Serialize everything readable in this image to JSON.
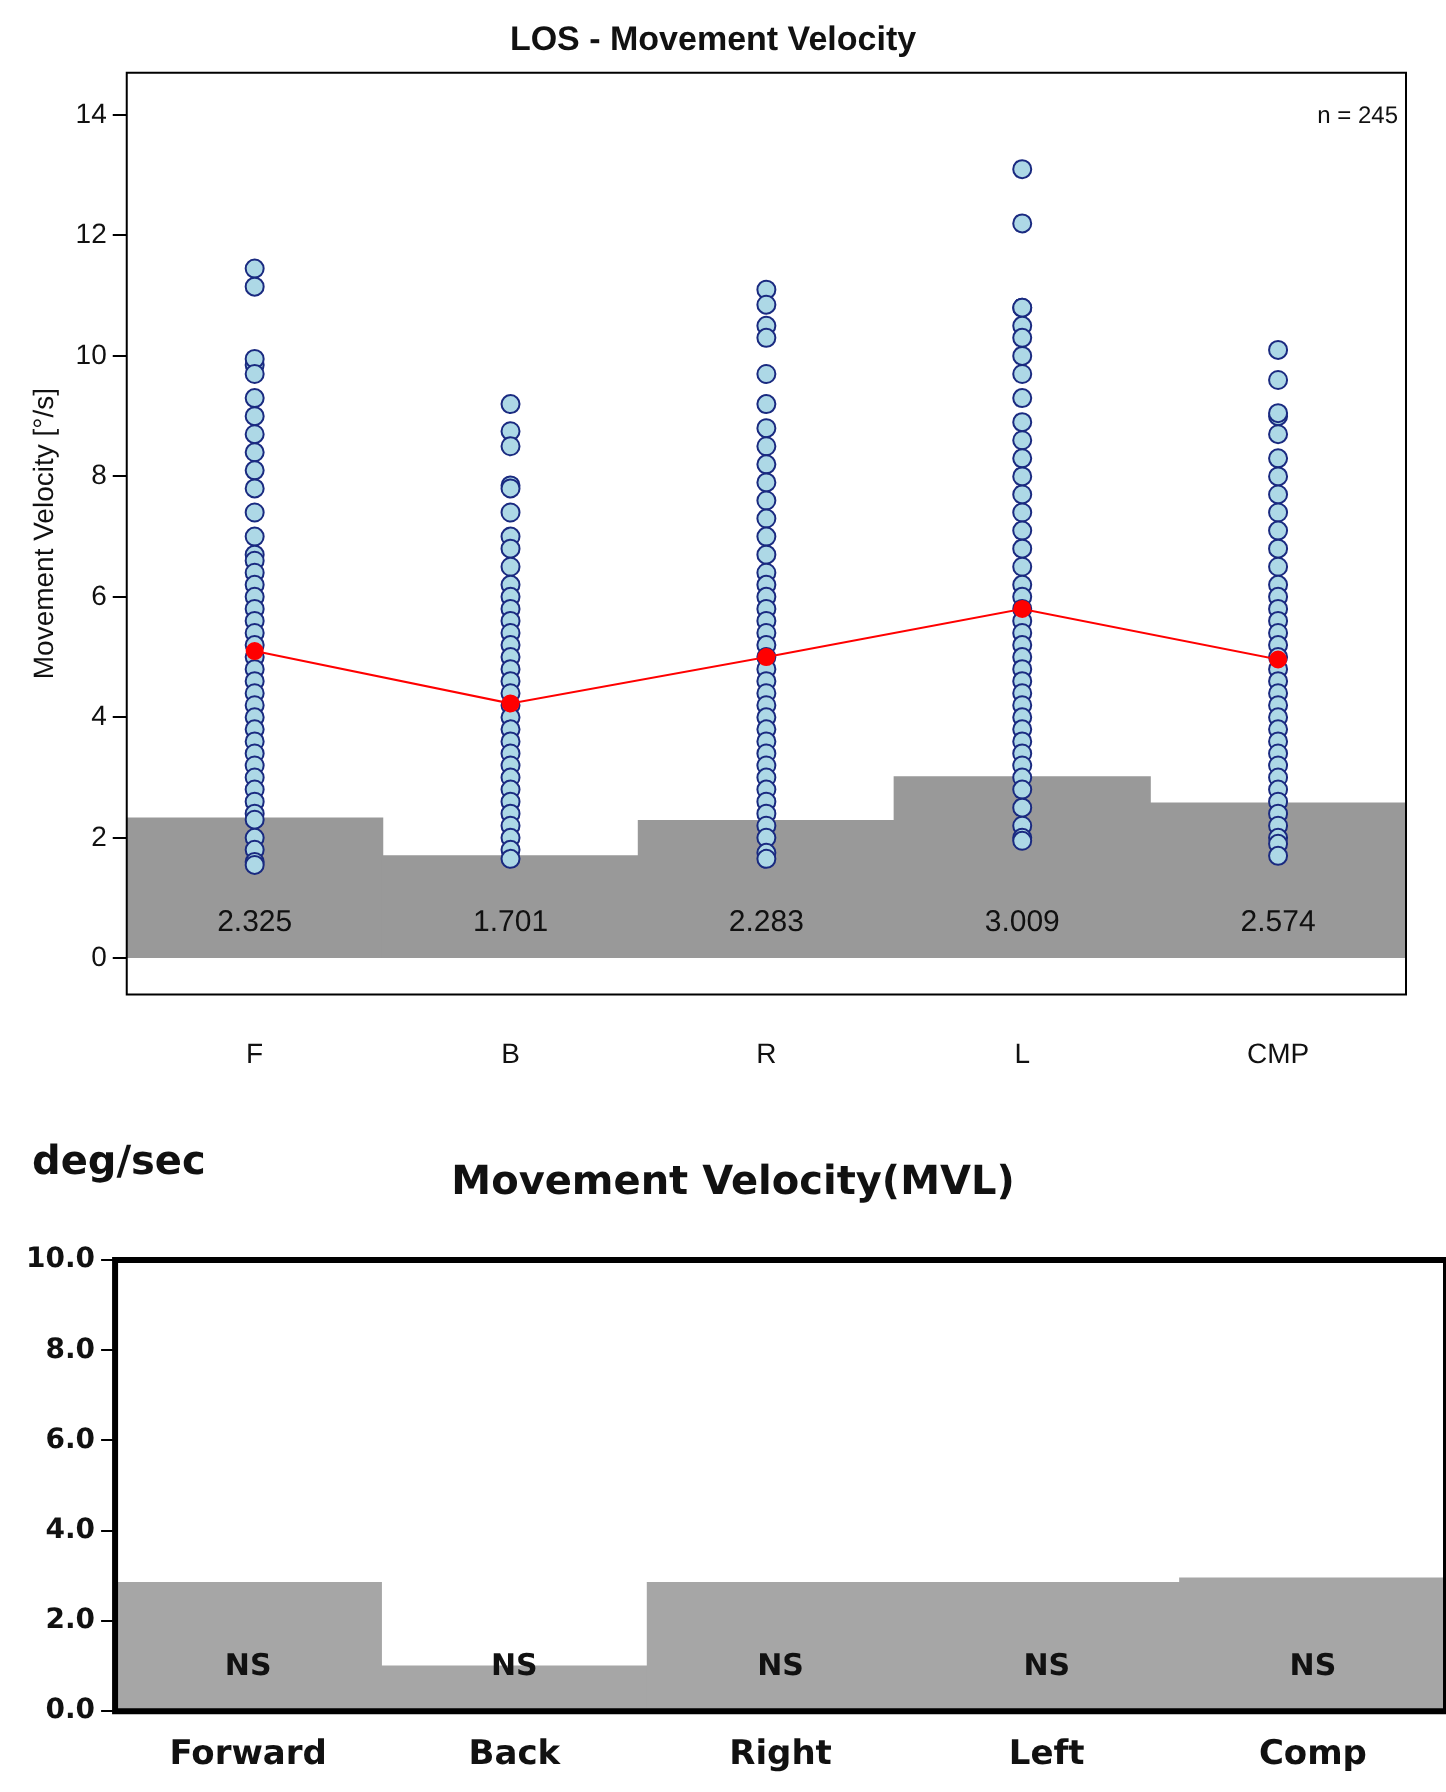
{
  "chart_data": [
    {
      "type": "bar",
      "title": "LOS - Movement Velocity",
      "ylabel": "Movement Velocity [°/s]",
      "categories": [
        "F",
        "B",
        "R",
        "L",
        "CMP"
      ],
      "series": [
        {
          "color": "#999999",
          "values": [
            2.325,
            1.701,
            2.283,
            3.009,
            2.574
          ],
          "value_labels": [
            "2.325",
            "1.701",
            "2.283",
            "3.009",
            "2.574"
          ]
        },
        {
          "type": "scatter",
          "color": "#add8e6",
          "x": [
            "F",
            "F",
            "F",
            "F",
            "F",
            "F",
            "F",
            "F",
            "F",
            "F",
            "F",
            "F",
            "F",
            "F",
            "F",
            "F",
            "F",
            "F",
            "F",
            "F",
            "F",
            "F",
            "F",
            "F",
            "F",
            "F",
            "F",
            "F",
            "F",
            "F",
            "F",
            "F",
            "F",
            "F",
            "F",
            "F",
            "F",
            "F",
            "F",
            "F",
            "F",
            "B",
            "B",
            "B",
            "B",
            "B",
            "B",
            "B",
            "B",
            "B",
            "B",
            "B",
            "B",
            "B",
            "B",
            "B",
            "B",
            "B",
            "B",
            "B",
            "B",
            "B",
            "B",
            "B",
            "B",
            "B",
            "B",
            "B",
            "B",
            "B",
            "B",
            "B",
            "B",
            "B",
            "R",
            "R",
            "R",
            "R",
            "R",
            "R",
            "R",
            "R",
            "R",
            "R",
            "R",
            "R",
            "R",
            "R",
            "R",
            "R",
            "R",
            "R",
            "R",
            "R",
            "R",
            "R",
            "R",
            "R",
            "R",
            "R",
            "R",
            "R",
            "R",
            "R",
            "R",
            "R",
            "R",
            "R",
            "R",
            "R",
            "R",
            "R",
            "R",
            "L",
            "L",
            "L",
            "L",
            "L",
            "L",
            "L",
            "L",
            "L",
            "L",
            "L",
            "L",
            "L",
            "L",
            "L",
            "L",
            "L",
            "L",
            "L",
            "L",
            "L",
            "L",
            "L",
            "L",
            "L",
            "L",
            "L",
            "L",
            "L",
            "L",
            "L",
            "L",
            "L",
            "L",
            "L",
            "L",
            "L",
            "L",
            "L",
            "L",
            "CMP",
            "CMP",
            "CMP",
            "CMP",
            "CMP",
            "CMP",
            "CMP",
            "CMP",
            "CMP",
            "CMP",
            "CMP",
            "CMP",
            "CMP",
            "CMP",
            "CMP",
            "CMP",
            "CMP",
            "CMP",
            "CMP",
            "CMP",
            "CMP",
            "CMP",
            "CMP",
            "CMP",
            "CMP",
            "CMP",
            "CMP",
            "CMP",
            "CMP",
            "CMP",
            "CMP",
            "CMP",
            "CMP",
            "CMP",
            "CMP",
            "CMP"
          ],
          "values": [
            11.45,
            11.15,
            9.85,
            9.95,
            9.7,
            9.3,
            9.0,
            8.7,
            8.4,
            8.1,
            7.8,
            7.4,
            7.0,
            6.7,
            6.6,
            6.4,
            6.2,
            6.0,
            5.8,
            5.6,
            5.4,
            5.2,
            5.0,
            4.8,
            4.6,
            4.4,
            4.2,
            4.0,
            3.8,
            3.6,
            3.4,
            3.2,
            3.0,
            2.8,
            2.6,
            2.4,
            2.3,
            2.0,
            1.8,
            1.6,
            1.55,
            9.2,
            8.75,
            8.5,
            7.85,
            7.8,
            7.4,
            7.0,
            6.8,
            6.5,
            6.2,
            6.0,
            5.8,
            5.6,
            5.4,
            5.2,
            5.0,
            4.8,
            4.6,
            4.4,
            4.2,
            4.0,
            3.8,
            3.6,
            3.4,
            3.2,
            3.0,
            2.8,
            2.6,
            2.4,
            2.2,
            2.0,
            1.8,
            1.65,
            11.1,
            10.85,
            10.5,
            10.3,
            9.7,
            9.2,
            8.8,
            8.5,
            8.2,
            7.9,
            7.6,
            7.3,
            7.0,
            6.7,
            6.4,
            6.2,
            6.0,
            5.8,
            5.6,
            5.4,
            5.2,
            5.0,
            4.8,
            4.6,
            4.4,
            4.2,
            4.0,
            3.8,
            3.6,
            3.4,
            3.2,
            3.0,
            2.8,
            2.6,
            2.4,
            2.2,
            2.0,
            1.75,
            1.65,
            13.1,
            12.2,
            10.8,
            10.8,
            10.5,
            10.3,
            10.0,
            9.7,
            9.3,
            8.9,
            8.6,
            8.3,
            8.0,
            7.7,
            7.4,
            7.1,
            6.8,
            6.5,
            6.2,
            6.0,
            5.8,
            5.6,
            5.4,
            5.2,
            5.0,
            4.8,
            4.6,
            4.4,
            4.2,
            4.0,
            3.8,
            3.6,
            3.4,
            3.2,
            3.0,
            2.8,
            2.5,
            2.2,
            2.0,
            1.95,
            10.1,
            9.6,
            9.0,
            9.05,
            8.7,
            8.3,
            8.0,
            7.7,
            7.4,
            7.1,
            6.8,
            6.5,
            6.2,
            6.0,
            5.8,
            5.6,
            5.4,
            5.2,
            5.0,
            4.8,
            4.6,
            4.4,
            4.2,
            4.0,
            3.8,
            3.6,
            3.4,
            3.2,
            3.0,
            2.8,
            2.6,
            2.4,
            2.2,
            2.0,
            1.9,
            1.7
          ]
        },
        {
          "type": "line",
          "color": "#ff0000",
          "marker": "circle",
          "values": [
            5.1,
            4.23,
            5.0,
            5.8,
            4.96
          ]
        }
      ],
      "annotations": [
        "n = 245"
      ],
      "ylim": [
        -0.6,
        14.7
      ],
      "yticks": [
        0,
        2,
        4,
        6,
        8,
        10,
        12,
        14
      ],
      "grid": false,
      "legend": false
    },
    {
      "type": "bar",
      "title": "Movement Velocity(MVL)",
      "ylabel": "deg/sec",
      "categories": [
        "Forward",
        "Back",
        "Right",
        "Left",
        "Comp"
      ],
      "series": [
        {
          "color": "#a6a6a6",
          "values": [
            2.85,
            1.0,
            2.85,
            2.85,
            2.95
          ],
          "value_labels": [
            "NS",
            "NS",
            "NS",
            "NS",
            "NS"
          ]
        }
      ],
      "ylim": [
        0,
        10
      ],
      "yticks": [
        {
          "value": 0,
          "label": "0.0"
        },
        {
          "value": 2,
          "label": "2.0"
        },
        {
          "value": 4,
          "label": "4.0"
        },
        {
          "value": 6,
          "label": "6.0"
        },
        {
          "value": 8,
          "label": "8.0"
        },
        {
          "value": 10,
          "label": "10.0"
        }
      ],
      "grid": false,
      "legend": false
    }
  ]
}
